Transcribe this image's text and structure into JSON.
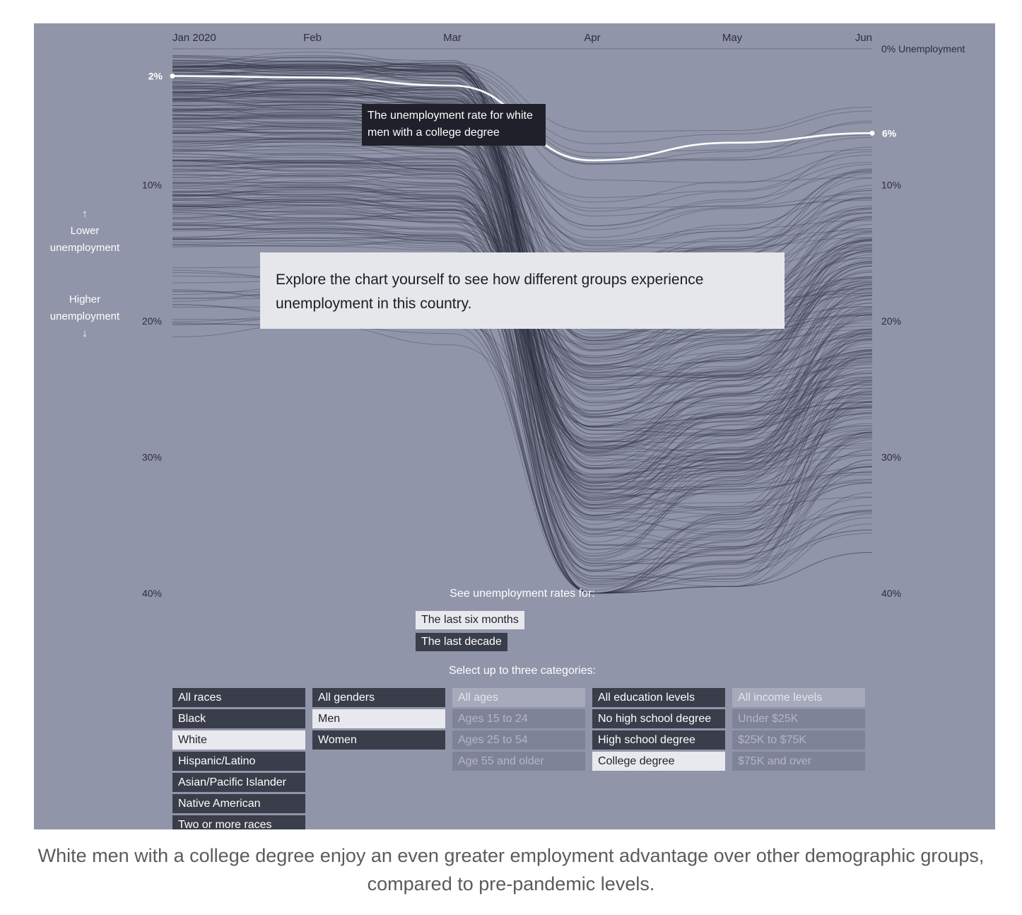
{
  "chart_data": {
    "type": "line",
    "x": [
      "Jan 2020",
      "Feb",
      "Mar",
      "Apr",
      "May",
      "Jun"
    ],
    "y_axis": {
      "ticks_left": [
        "10%",
        "20%",
        "30%",
        "40%"
      ],
      "ticks_right": [
        "10%",
        "20%",
        "30%",
        "40%"
      ],
      "zero_label": "0% Unemployment",
      "ylim": [
        0,
        40
      ],
      "inverted": true
    },
    "highlight_series": {
      "values": [
        2,
        2.1,
        2.7,
        8.2,
        6.9,
        6.2
      ],
      "start_label": "2%",
      "end_label": "6%"
    },
    "background_series_count": 300,
    "grid": false
  },
  "axis_notes": {
    "lower_arrow": "↑",
    "lower": "Lower unemployment",
    "higher": "Higher unemployment",
    "higher_arrow": "↓"
  },
  "tooltip": "The unemployment rate for white men with a college degree",
  "explore_message": "Explore the chart yourself to see how different groups experience unemployment in this country.",
  "controls": {
    "range_title": "See unemployment rates for:",
    "ranges": [
      {
        "label": "The last six months",
        "selected": true
      },
      {
        "label": "The last decade",
        "selected": false
      }
    ],
    "categories_title": "Select up to three categories:",
    "categories": {
      "race": [
        "All races",
        "Black",
        "White",
        "Hispanic/Latino",
        "Asian/Pacific Islander",
        "Native American",
        "Two or more races"
      ],
      "gender": [
        "All genders",
        "Men",
        "Women"
      ],
      "age": [
        "All ages",
        "Ages 15 to 24",
        "Ages 25 to 54",
        "Age 55 and older"
      ],
      "education": [
        "All education levels",
        "No high school degree",
        "High school degree",
        "College degree"
      ],
      "income": [
        "All income levels",
        "Under $25K",
        "$25K to $75K",
        "$75K and over"
      ]
    }
  },
  "caption": "White men with a college degree enjoy an even greater employment advantage over other demographic groups, compared to pre-pandemic levels.",
  "colors": {
    "panel": "#9195a9",
    "lines": "#2b2e3d",
    "highlight": "#ffffff",
    "button_dark": "#3a3d4a",
    "button_selected": "#e8e9ee"
  }
}
